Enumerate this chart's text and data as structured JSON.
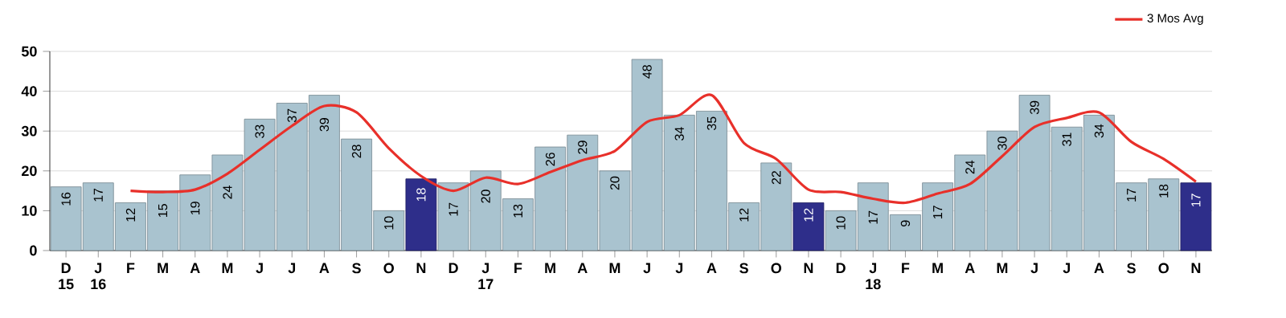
{
  "chart_data": {
    "type": "bar",
    "categories": [
      "D 15",
      "J 16",
      "F",
      "M",
      "A",
      "M",
      "J",
      "J",
      "A",
      "S",
      "O",
      "N",
      "D",
      "J 17",
      "F",
      "M",
      "A",
      "M",
      "J",
      "J",
      "A",
      "S",
      "O",
      "N",
      "D",
      "J 18",
      "F",
      "M",
      "A",
      "M",
      "J",
      "J",
      "A",
      "S",
      "O",
      "N"
    ],
    "series": [
      {
        "colors": [
          "#a9c3cf",
          "#a9c3cf",
          "#a9c3cf",
          "#a9c3cf",
          "#a9c3cf",
          "#a9c3cf",
          "#a9c3cf",
          "#a9c3cf",
          "#a9c3cf",
          "#a9c3cf",
          "#a9c3cf",
          "#2e2e8a",
          "#a9c3cf",
          "#a9c3cf",
          "#a9c3cf",
          "#a9c3cf",
          "#a9c3cf",
          "#a9c3cf",
          "#a9c3cf",
          "#a9c3cf",
          "#a9c3cf",
          "#a9c3cf",
          "#a9c3cf",
          "#2e2e8a",
          "#a9c3cf",
          "#a9c3cf",
          "#a9c3cf",
          "#a9c3cf",
          "#a9c3cf",
          "#a9c3cf",
          "#a9c3cf",
          "#a9c3cf",
          "#a9c3cf",
          "#a9c3cf",
          "#a9c3cf",
          "#2e2e8a"
        ],
        "values": [
          16,
          17,
          12,
          15,
          19,
          24,
          33,
          37,
          39,
          28,
          10,
          18,
          17,
          20,
          13,
          26,
          29,
          20,
          48,
          34,
          35,
          12,
          22,
          12,
          10,
          17,
          9,
          17,
          24,
          30,
          39,
          31,
          34,
          17,
          18,
          17
        ],
        "value_labels": [
          "16",
          "17",
          "12",
          "15",
          "19",
          "24",
          "33",
          "37",
          "39",
          "28",
          "10",
          "18",
          "17",
          "20",
          "13",
          "26",
          "29",
          "20",
          "48",
          "34",
          "35",
          "12",
          "22",
          "12",
          "10",
          "17",
          "9",
          "17",
          "24",
          "30",
          "39",
          "31",
          "34",
          "17",
          "18",
          "17"
        ]
      },
      {
        "type": "line",
        "name": "3 Mos Avg",
        "color": "#e8302a",
        "values": [
          null,
          null,
          15,
          14.7,
          15.3,
          19.3,
          25.3,
          31.3,
          36.3,
          34.7,
          25.7,
          18.7,
          15,
          18.3,
          16.7,
          19.7,
          22.7,
          25,
          32.3,
          34,
          39,
          27,
          23,
          15.3,
          14.7,
          13,
          12,
          14.3,
          16.7,
          23.7,
          31,
          33.3,
          34.7,
          27.3,
          23,
          17.3
        ]
      }
    ],
    "ylim": [
      0,
      50
    ],
    "yticks": [
      0,
      10,
      20,
      30,
      40,
      50
    ],
    "grid": "y",
    "legend": "top right",
    "marker": "none",
    "line_style": "solid"
  }
}
